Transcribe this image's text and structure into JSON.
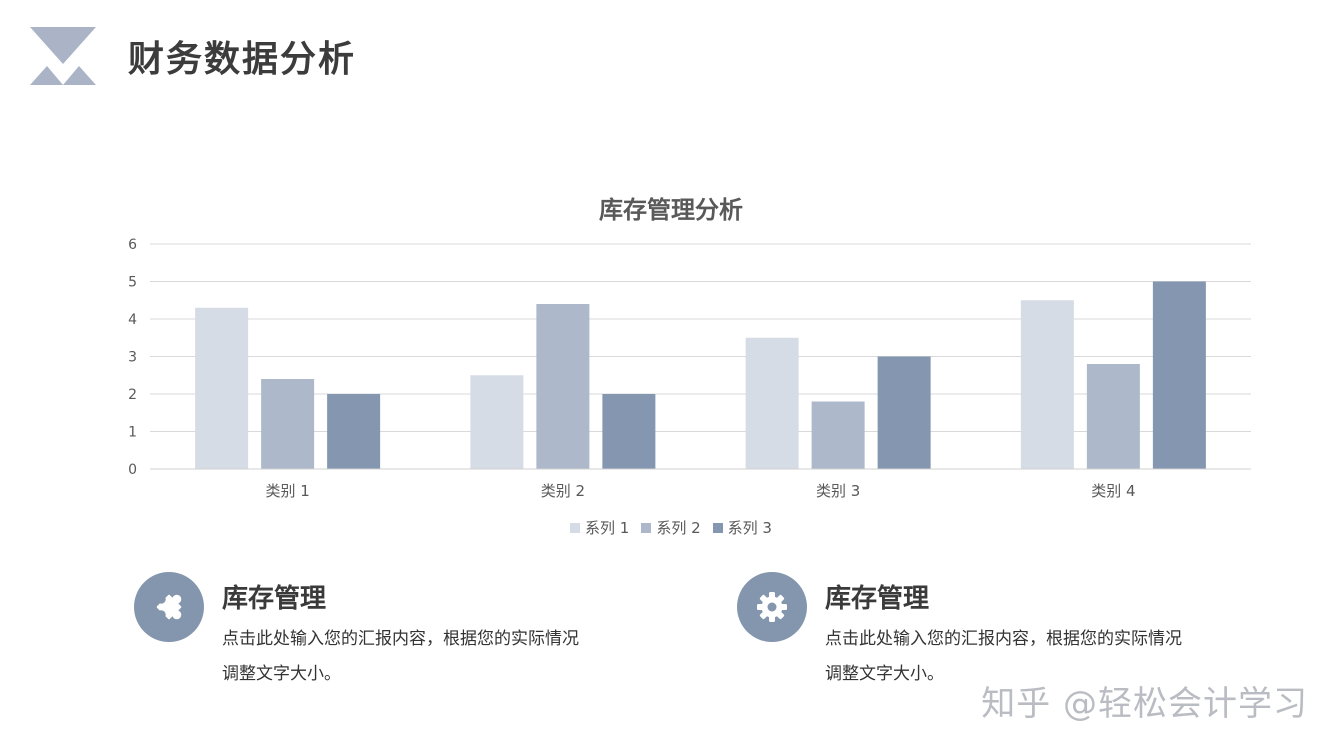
{
  "page": {
    "title": "财务数据分析"
  },
  "colors": {
    "series1": "#d6dce5",
    "series2": "#adb9ca",
    "series3": "#8496b0",
    "grid": "#d9d9d9",
    "icon_bg": "#8496ae",
    "logo": "#aab4c6"
  },
  "chart_data": {
    "type": "bar",
    "title": "库存管理分析",
    "categories": [
      "类别 1",
      "类别 2",
      "类别 3",
      "类别 4"
    ],
    "series": [
      {
        "name": "系列 1",
        "values": [
          4.3,
          2.5,
          3.5,
          4.5
        ]
      },
      {
        "name": "系列 2",
        "values": [
          2.4,
          4.4,
          1.8,
          2.8
        ]
      },
      {
        "name": "系列 3",
        "values": [
          2,
          2,
          3,
          5
        ]
      }
    ],
    "ylim": [
      0,
      6
    ],
    "yticks": [
      "0",
      "1",
      "2",
      "3",
      "4",
      "5",
      "6"
    ],
    "grid": true,
    "legend_position": "bottom"
  },
  "cards": [
    {
      "icon": "puzzle-icon",
      "title": "库存管理",
      "text": "点击此处输入您的汇报内容，根据您的实际情况调整文字大小。"
    },
    {
      "icon": "gear-icon",
      "title": "库存管理",
      "text": "点击此处输入您的汇报内容，根据您的实际情况调整文字大小。"
    }
  ],
  "watermark": "知乎 @轻松会计学习"
}
